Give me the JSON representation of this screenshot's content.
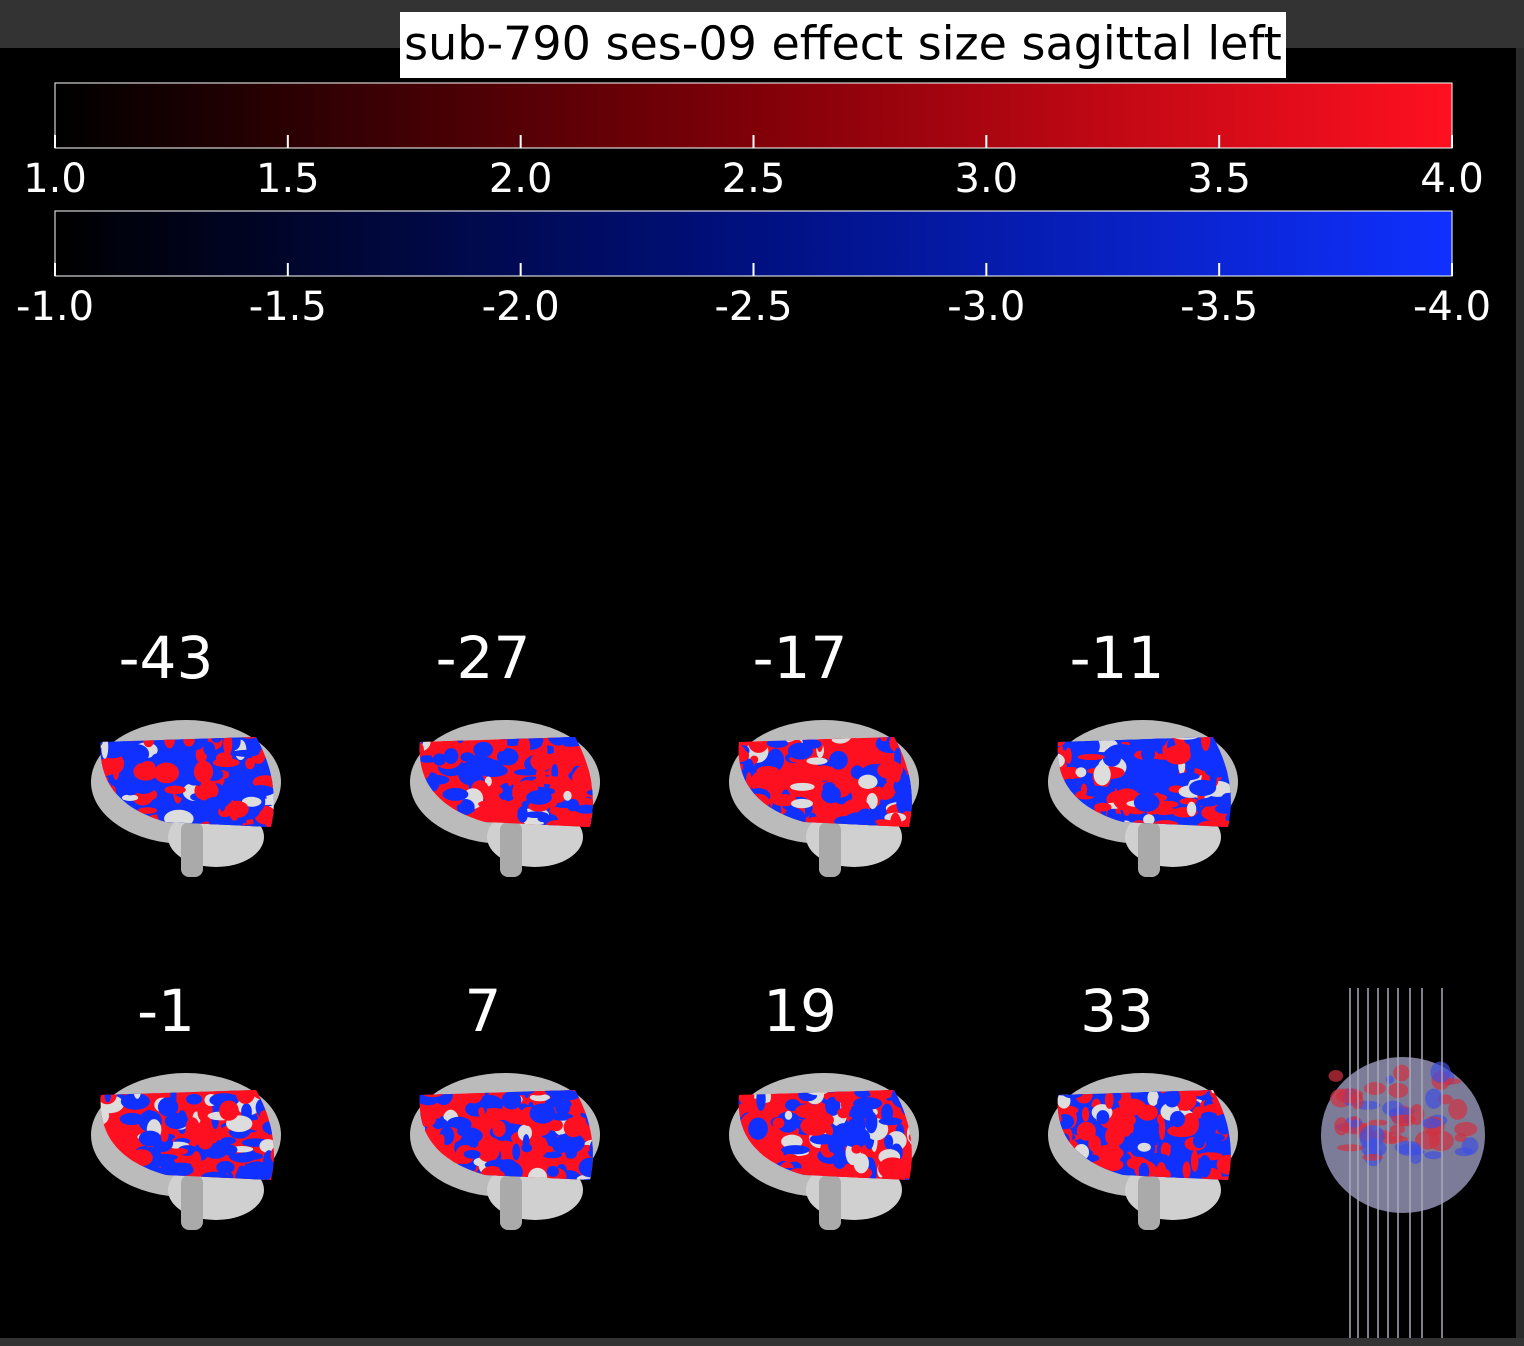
{
  "title": "sub-790 ses-09 effect size sagittal left",
  "colorbars": [
    {
      "name": "positive",
      "ticks": [
        "1.0",
        "1.5",
        "2.0",
        "2.5",
        "3.0",
        "3.5",
        "4.0"
      ]
    },
    {
      "name": "negative",
      "ticks": [
        "-1.0",
        "-1.5",
        "-2.0",
        "-2.5",
        "-3.0",
        "-3.5",
        "-4.0"
      ]
    }
  ],
  "slices": [
    "-43",
    "-27",
    "-17",
    "-11",
    "-1",
    "7",
    "19",
    "33"
  ]
}
